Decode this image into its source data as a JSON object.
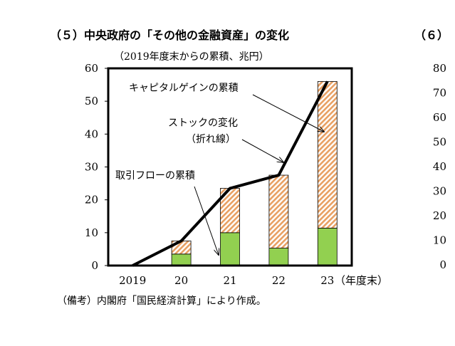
{
  "chart_data": [
    {
      "type": "bar",
      "title": "（５）中央政府の「その他の金融資産」の変化",
      "subtitle": "（2019年度末からの累積、兆円）",
      "xlabel": "（年度末）",
      "categories": [
        "2019",
        "20",
        "21",
        "22",
        "23"
      ],
      "ylim": [
        0,
        60
      ],
      "yticks": [
        "0",
        "10",
        "20",
        "30",
        "40",
        "50",
        "60"
      ],
      "stacked": true,
      "series": [
        {
          "name": "取引フローの累積",
          "values": [
            0,
            3.5,
            10,
            5.3,
            11.4
          ],
          "color": "#92d050"
        },
        {
          "name": "キャピタルゲインの累積",
          "values": [
            0,
            4,
            13.5,
            22.2,
            44.6
          ],
          "color": "#e8a063"
        }
      ],
      "line": {
        "name": "ストックの変化（折れ線）",
        "name_line1": "ストックの変化",
        "name_line2": "（折れ線）",
        "values": [
          0,
          7.5,
          23.5,
          27.5,
          56
        ],
        "color": "#000000"
      },
      "grid": false,
      "note": "（備考）内閣府「国民経済計算」により作成。"
    },
    {
      "type": "bar",
      "title": "（６）",
      "ylim": [
        0,
        80
      ],
      "yticks": [
        "0",
        "10",
        "20",
        "30",
        "40",
        "50",
        "60",
        "70",
        "80"
      ]
    }
  ]
}
